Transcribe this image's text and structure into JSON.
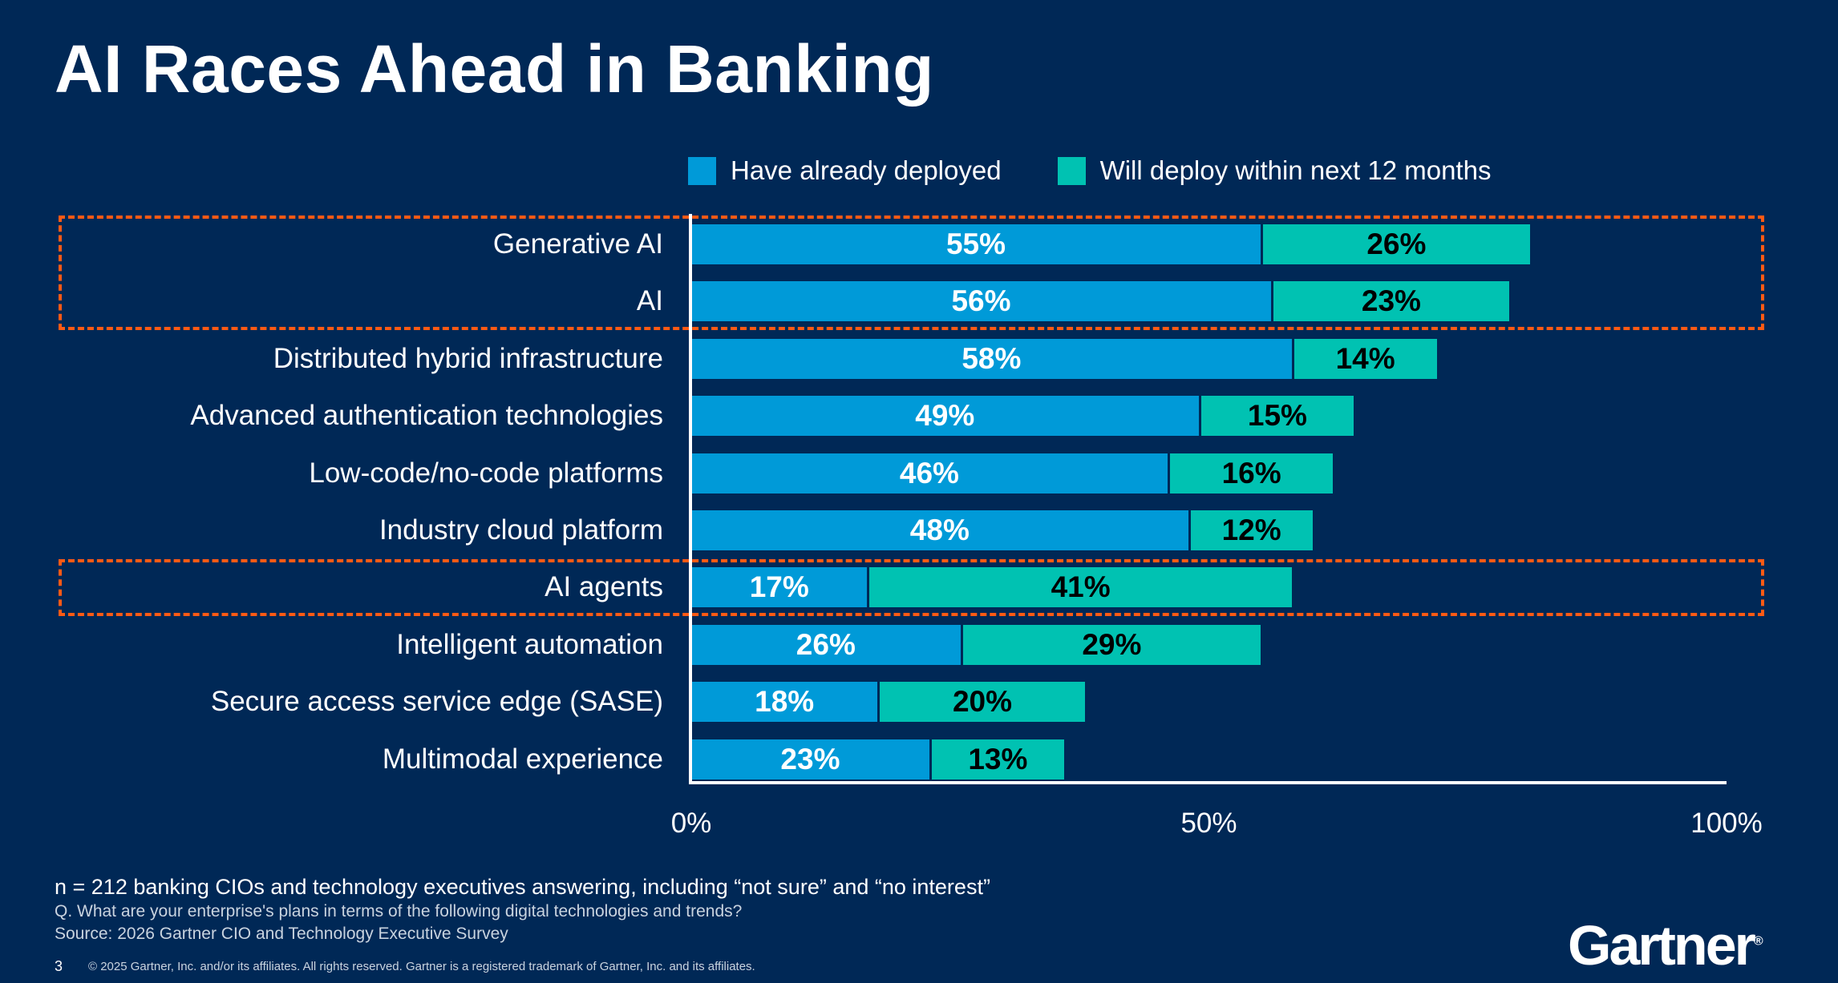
{
  "title": "AI Races Ahead in Banking",
  "colors": {
    "background": "#002856",
    "deployed": "#009ad8",
    "will_deploy": "#00c2b2",
    "highlight": "#ff5a14"
  },
  "chart_data": {
    "type": "bar",
    "orientation": "horizontal",
    "stacked": true,
    "categories": [
      "Generative AI",
      "AI",
      "Distributed hybrid infrastructure",
      "Advanced authentication technologies",
      "Low-code/no-code platforms",
      "Industry cloud platform",
      "AI agents",
      "Intelligent automation",
      "Secure access service edge (SASE)",
      "Multimodal experience"
    ],
    "series": [
      {
        "name": "Have already deployed",
        "values": [
          55,
          56,
          58,
          49,
          46,
          48,
          17,
          26,
          18,
          23
        ]
      },
      {
        "name": "Will deploy within next 12 months",
        "values": [
          26,
          23,
          14,
          15,
          16,
          12,
          41,
          29,
          20,
          13
        ]
      }
    ],
    "xlim": [
      0,
      100
    ],
    "x_ticks": [
      "0%",
      "50%",
      "100%"
    ],
    "legend": "top",
    "grid": false,
    "highlighted_categories": [
      [
        "Generative AI",
        "AI"
      ],
      [
        "AI agents"
      ]
    ]
  },
  "footnotes": {
    "sample": "n = 212 banking CIOs and technology executives answering, including “not sure” and “no interest”",
    "question": "Q. What are your enterprise's plans in terms of the following digital technologies and trends?",
    "source": "Source: 2026 Gartner CIO and Technology Executive Survey"
  },
  "page_number": "3",
  "copyright": "© 2025 Gartner, Inc. and/or its affiliates. All rights reserved. Gartner is a registered trademark of Gartner, Inc. and its affiliates.",
  "logo": "Gartner"
}
